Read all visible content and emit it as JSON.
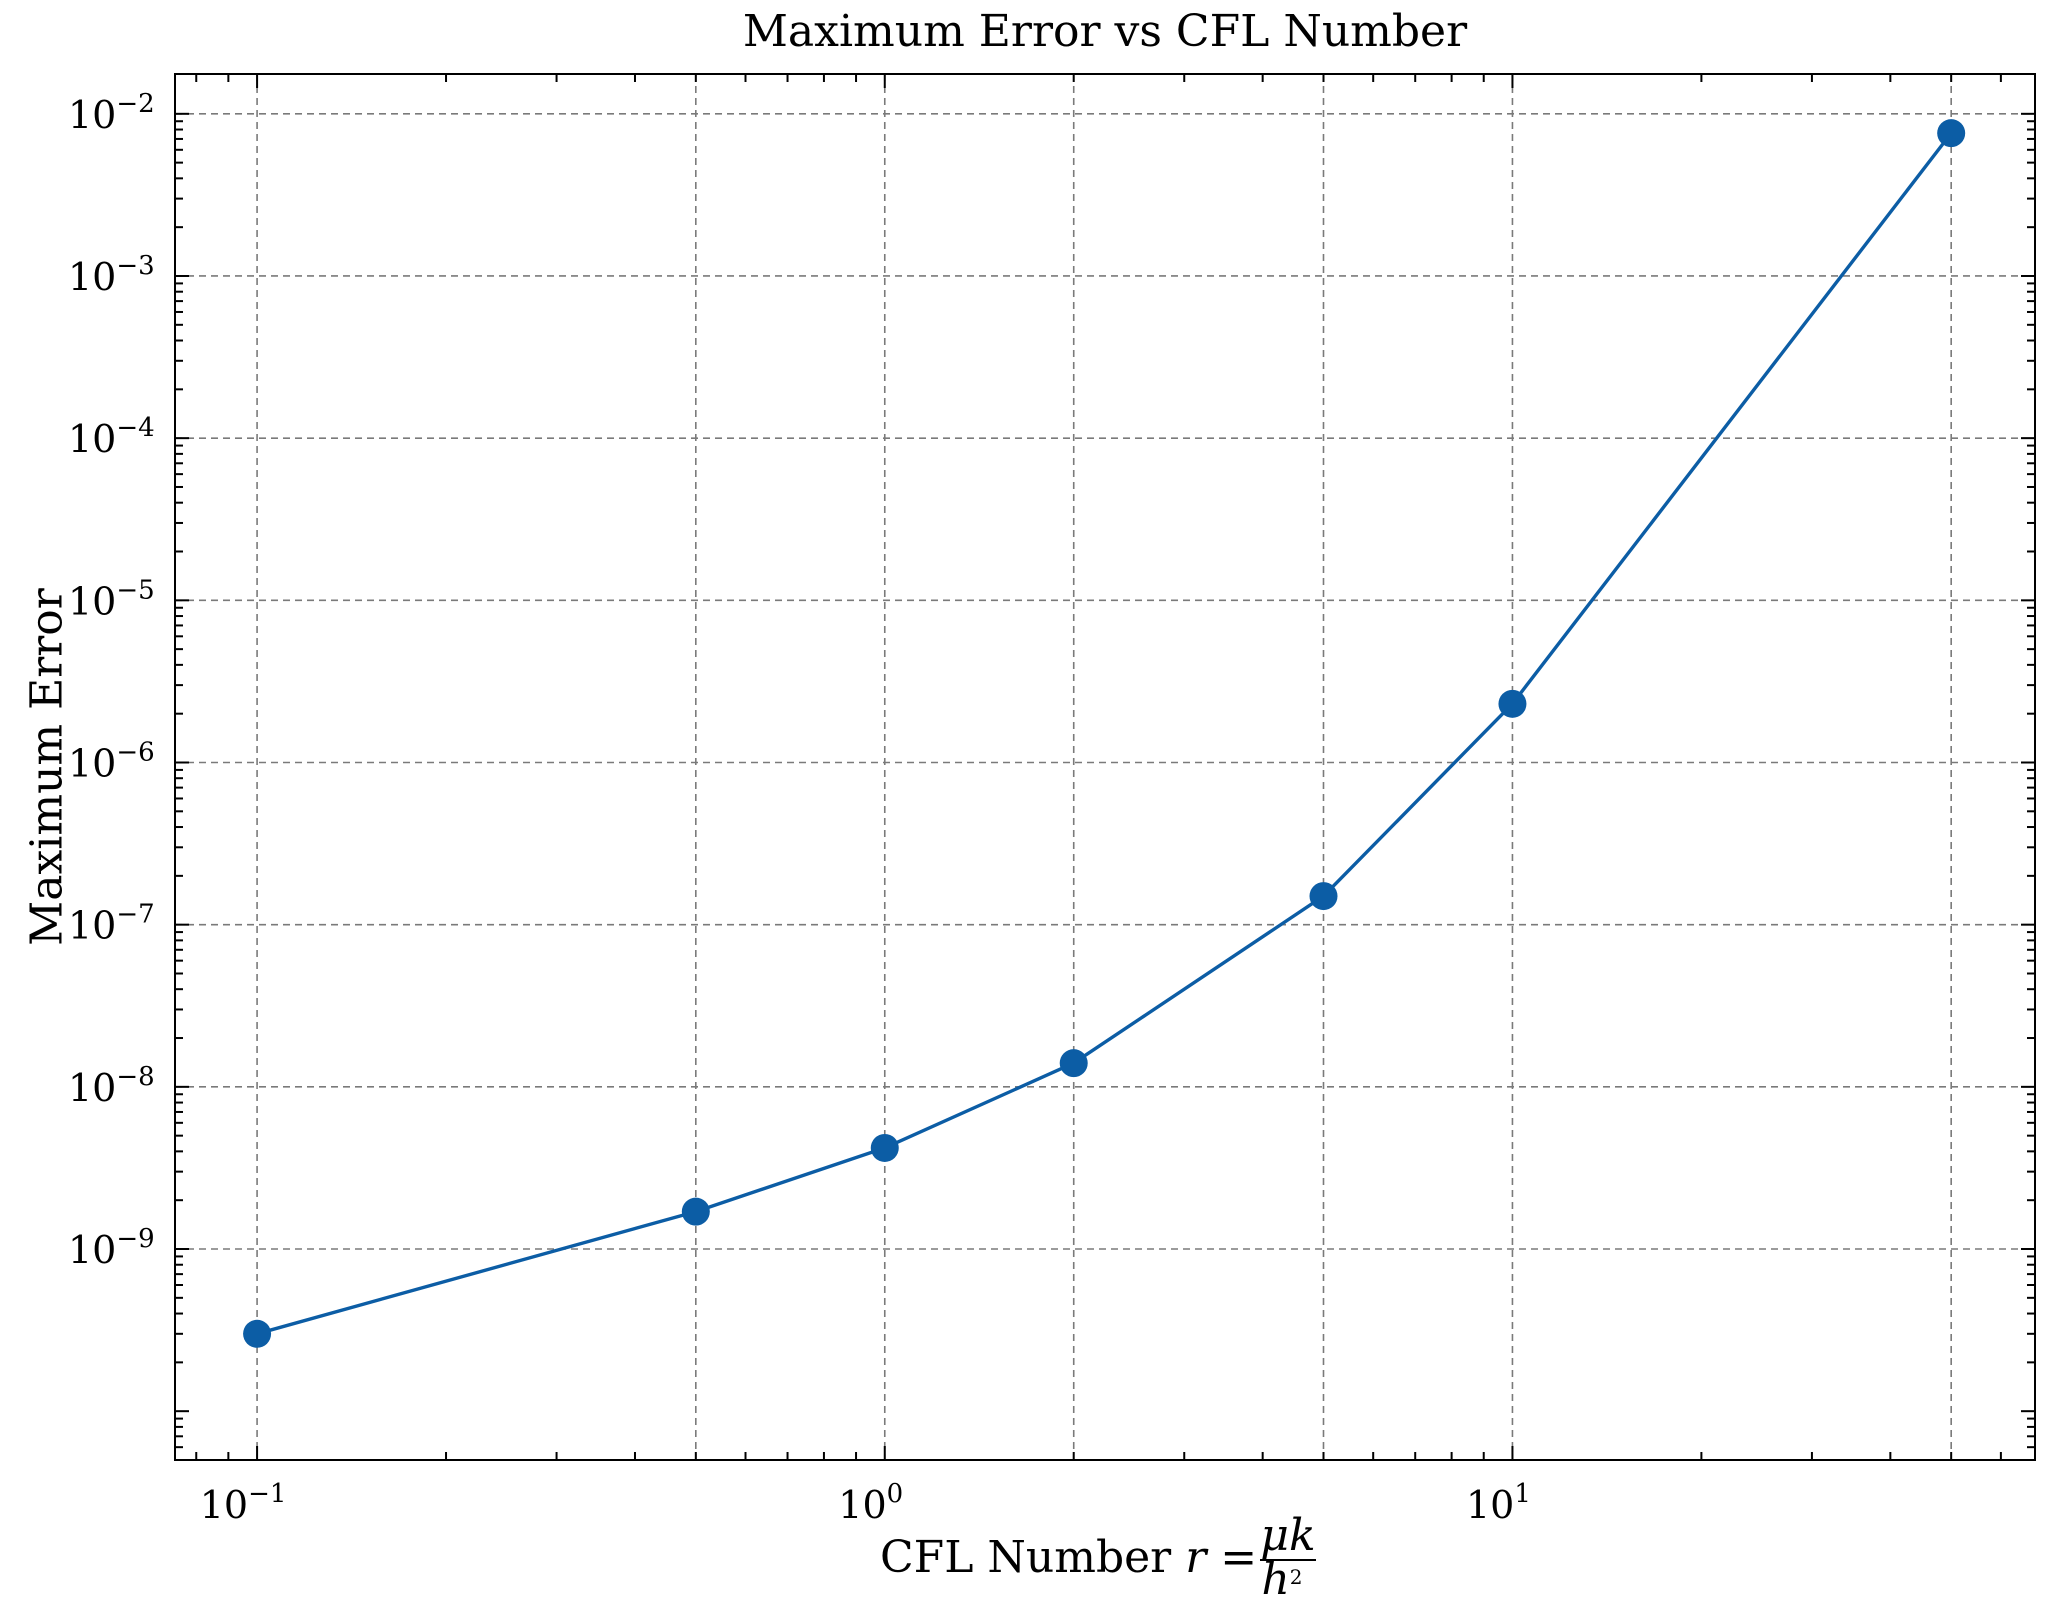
{
  "chart_data": {
    "type": "line",
    "title": "Maximum Error vs CFL Number",
    "xlabel": "CFL Number r = μk/h²",
    "xlabel_parts": {
      "prefix": "CFL Number ",
      "var": "r",
      "eq": " = ",
      "num": "μk",
      "den": "h",
      "den_exp": "2"
    },
    "ylabel": "Maximum Error",
    "xscale": "log",
    "yscale": "log",
    "xlim": [
      0.074,
      68
    ],
    "ylim": [
      5e-11,
      0.0176
    ],
    "grid": true,
    "color": "#0c5da5",
    "x_ticks": [
      {
        "value": 0.1,
        "base": "10",
        "exp": "−1"
      },
      {
        "value": 1,
        "base": "10",
        "exp": "0"
      },
      {
        "value": 10,
        "base": "10",
        "exp": "1"
      }
    ],
    "y_ticks": [
      {
        "value": 1e-09,
        "base": "10",
        "exp": "−9"
      },
      {
        "value": 1e-08,
        "base": "10",
        "exp": "−8"
      },
      {
        "value": 1e-07,
        "base": "10",
        "exp": "−7"
      },
      {
        "value": 1e-06,
        "base": "10",
        "exp": "−6"
      },
      {
        "value": 1e-05,
        "base": "10",
        "exp": "−5"
      },
      {
        "value": 0.0001,
        "base": "10",
        "exp": "−4"
      },
      {
        "value": 0.001,
        "base": "10",
        "exp": "−3"
      },
      {
        "value": 0.01,
        "base": "10",
        "exp": "−2"
      }
    ],
    "x_grid": [
      0.1,
      0.5,
      1,
      2,
      5,
      10,
      50
    ],
    "series": [
      {
        "x": [
          0.1,
          0.5,
          1,
          2,
          5,
          10,
          50
        ],
        "y": [
          3e-10,
          1.7e-09,
          4.2e-09,
          1.4e-08,
          1.5e-07,
          2.3e-06,
          0.0076
        ]
      }
    ]
  }
}
